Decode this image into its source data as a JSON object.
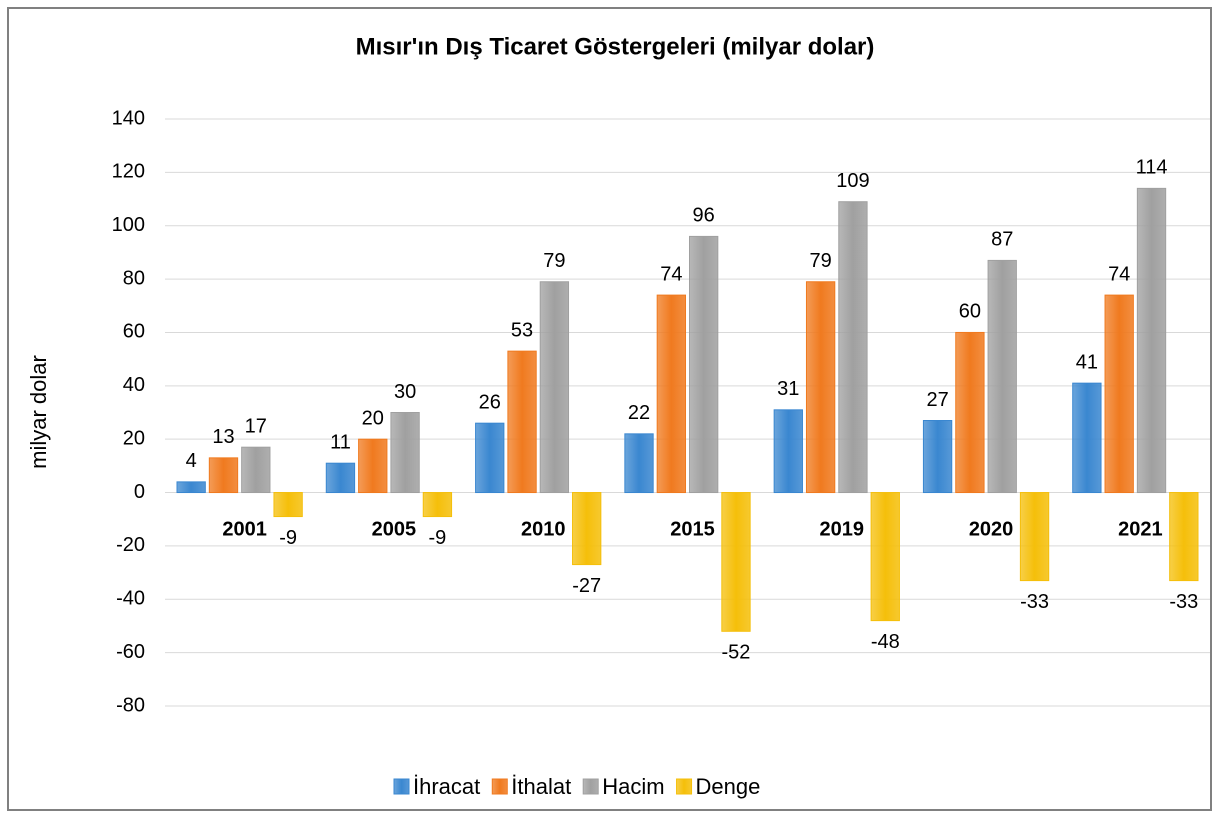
{
  "chart_data": {
    "type": "bar",
    "title": "Mısır'ın Dış Ticaret Göstergeleri  (milyar dolar)",
    "y_axis_label": "milyar dolar",
    "categories": [
      "2001",
      "2005",
      "2010",
      "2015",
      "2019",
      "2020",
      "2021"
    ],
    "series": [
      {
        "name": "İhracat",
        "color": "#3a87d0",
        "values": [
          4,
          11,
          26,
          22,
          31,
          27,
          41
        ]
      },
      {
        "name": "İthalat",
        "color": "#f07a1f",
        "values": [
          13,
          20,
          53,
          74,
          79,
          60,
          74
        ]
      },
      {
        "name": "Hacim",
        "color": "#a0a0a0",
        "values": [
          17,
          30,
          79,
          96,
          109,
          87,
          114
        ]
      },
      {
        "name": "Denge",
        "color": "#f5bf0a",
        "values": [
          -9,
          -9,
          -27,
          -52,
          -48,
          -33,
          -33
        ]
      }
    ],
    "ylim": [
      -80,
      140
    ],
    "yticks": [
      -80,
      -60,
      -40,
      -20,
      0,
      20,
      40,
      60,
      80,
      100,
      120,
      140
    ],
    "grid": true,
    "legend": "bottom"
  }
}
